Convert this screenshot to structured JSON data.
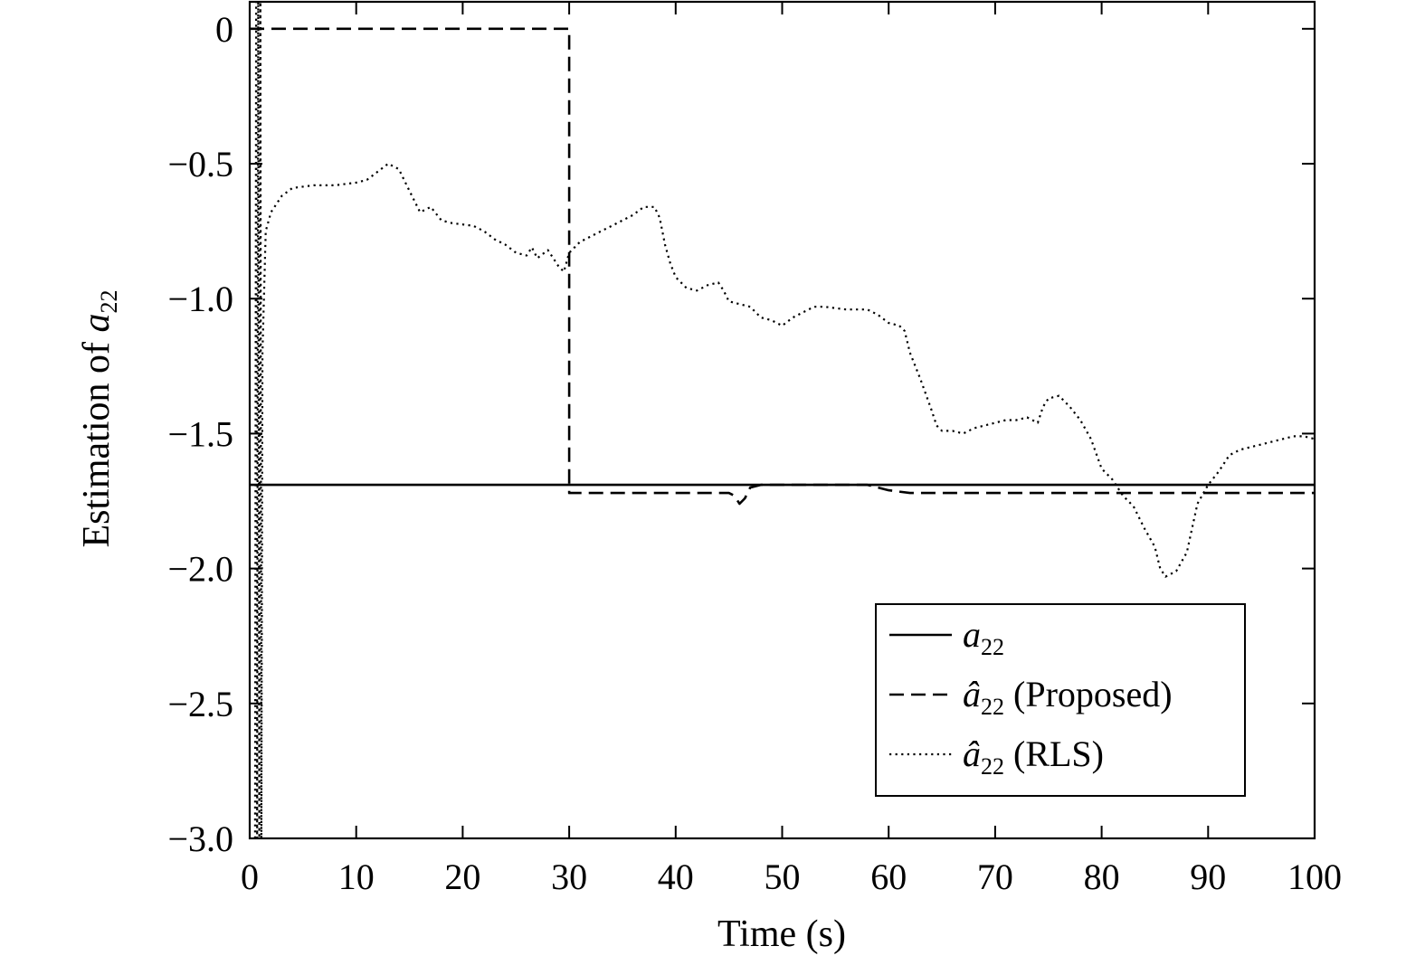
{
  "chart_data": {
    "type": "line",
    "title": "",
    "xlabel": "Time (s)",
    "ylabel": {
      "prefix": "Estimation of ",
      "symbol": "a",
      "subscript": "22"
    },
    "xlim": [
      0,
      100
    ],
    "ylim": [
      -3.0,
      0.1
    ],
    "x_ticks": [
      0,
      10,
      20,
      30,
      40,
      50,
      60,
      70,
      80,
      90,
      100
    ],
    "x_tick_labels": [
      "0",
      "10",
      "20",
      "30",
      "40",
      "50",
      "60",
      "70",
      "80",
      "90",
      "100"
    ],
    "y_ticks": [
      0,
      -0.5,
      -1.0,
      -1.5,
      -2.0,
      -2.5,
      -3.0
    ],
    "y_tick_labels": [
      "0",
      "−0.5",
      "−1.0",
      "−1.5",
      "−2.0",
      "−2.5",
      "−3.0"
    ],
    "grid": false,
    "legend_position": "bottom-right",
    "series": [
      {
        "id": "true",
        "symbol": "a",
        "hat": false,
        "subscript": "22",
        "suffix": "",
        "style": "solid",
        "points": [
          [
            0,
            -1.69
          ],
          [
            100,
            -1.69
          ]
        ]
      },
      {
        "id": "proposed",
        "symbol": "a",
        "hat": true,
        "subscript": "22",
        "suffix": " (Proposed)",
        "style": "dashed",
        "points": [
          [
            0,
            0.0
          ],
          [
            30,
            0.0
          ],
          [
            30,
            -1.72
          ],
          [
            45,
            -1.72
          ],
          [
            45.5,
            -1.73
          ],
          [
            46,
            -1.76
          ],
          [
            46.5,
            -1.74
          ],
          [
            47,
            -1.7
          ],
          [
            48,
            -1.69
          ],
          [
            50,
            -1.69
          ],
          [
            55,
            -1.69
          ],
          [
            58,
            -1.69
          ],
          [
            60,
            -1.71
          ],
          [
            62,
            -1.72
          ],
          [
            100,
            -1.72
          ]
        ]
      },
      {
        "id": "rls",
        "symbol": "a",
        "hat": true,
        "subscript": "22",
        "suffix": " (RLS)",
        "style": "dotted",
        "points": [
          [
            0.5,
            -3.0
          ],
          [
            0.6,
            0.1
          ],
          [
            0.7,
            -3.0
          ],
          [
            0.8,
            0.1
          ],
          [
            0.9,
            -3.0
          ],
          [
            1.0,
            0.1
          ],
          [
            1.1,
            -3.0
          ],
          [
            1.2,
            -1.2
          ],
          [
            1.5,
            -0.75
          ],
          [
            2,
            -0.68
          ],
          [
            3,
            -0.62
          ],
          [
            4,
            -0.59
          ],
          [
            6,
            -0.58
          ],
          [
            8,
            -0.58
          ],
          [
            10,
            -0.57
          ],
          [
            11,
            -0.56
          ],
          [
            12,
            -0.53
          ],
          [
            13,
            -0.5
          ],
          [
            14,
            -0.52
          ],
          [
            15,
            -0.6
          ],
          [
            16,
            -0.68
          ],
          [
            17,
            -0.66
          ],
          [
            18,
            -0.71
          ],
          [
            19,
            -0.72
          ],
          [
            21,
            -0.73
          ],
          [
            22,
            -0.75
          ],
          [
            23,
            -0.78
          ],
          [
            24,
            -0.8
          ],
          [
            25,
            -0.83
          ],
          [
            26,
            -0.84
          ],
          [
            26.5,
            -0.81
          ],
          [
            27,
            -0.85
          ],
          [
            28,
            -0.82
          ],
          [
            29,
            -0.88
          ],
          [
            29.5,
            -0.9
          ],
          [
            30,
            -0.83
          ],
          [
            31,
            -0.79
          ],
          [
            32,
            -0.77
          ],
          [
            33,
            -0.75
          ],
          [
            34,
            -0.73
          ],
          [
            35,
            -0.71
          ],
          [
            36,
            -0.69
          ],
          [
            37,
            -0.66
          ],
          [
            38,
            -0.66
          ],
          [
            38.5,
            -0.7
          ],
          [
            39,
            -0.8
          ],
          [
            39.5,
            -0.87
          ],
          [
            40,
            -0.92
          ],
          [
            41,
            -0.96
          ],
          [
            42,
            -0.97
          ],
          [
            43,
            -0.95
          ],
          [
            44,
            -0.94
          ],
          [
            44.5,
            -0.97
          ],
          [
            45,
            -1.01
          ],
          [
            46,
            -1.02
          ],
          [
            47,
            -1.03
          ],
          [
            48,
            -1.07
          ],
          [
            49,
            -1.08
          ],
          [
            50,
            -1.1
          ],
          [
            51,
            -1.07
          ],
          [
            52,
            -1.05
          ],
          [
            53,
            -1.03
          ],
          [
            54,
            -1.03
          ],
          [
            56,
            -1.04
          ],
          [
            58,
            -1.04
          ],
          [
            59,
            -1.06
          ],
          [
            60,
            -1.09
          ],
          [
            61,
            -1.1
          ],
          [
            61.5,
            -1.12
          ],
          [
            62,
            -1.2
          ],
          [
            63,
            -1.3
          ],
          [
            64,
            -1.41
          ],
          [
            64.5,
            -1.47
          ],
          [
            65,
            -1.49
          ],
          [
            66,
            -1.49
          ],
          [
            67,
            -1.5
          ],
          [
            68,
            -1.48
          ],
          [
            69,
            -1.47
          ],
          [
            70,
            -1.46
          ],
          [
            71,
            -1.45
          ],
          [
            72,
            -1.45
          ],
          [
            73,
            -1.44
          ],
          [
            74,
            -1.46
          ],
          [
            74.5,
            -1.4
          ],
          [
            75,
            -1.37
          ],
          [
            76,
            -1.36
          ],
          [
            77,
            -1.4
          ],
          [
            78,
            -1.45
          ],
          [
            79,
            -1.52
          ],
          [
            80,
            -1.63
          ],
          [
            81,
            -1.67
          ],
          [
            82,
            -1.73
          ],
          [
            83,
            -1.77
          ],
          [
            84,
            -1.85
          ],
          [
            85,
            -1.92
          ],
          [
            85.5,
            -2.0
          ],
          [
            86,
            -2.03
          ],
          [
            87,
            -2.01
          ],
          [
            88,
            -1.94
          ],
          [
            88.5,
            -1.85
          ],
          [
            89,
            -1.76
          ],
          [
            90,
            -1.69
          ],
          [
            91,
            -1.64
          ],
          [
            92,
            -1.58
          ],
          [
            93,
            -1.56
          ],
          [
            94,
            -1.55
          ],
          [
            95,
            -1.54
          ],
          [
            96,
            -1.53
          ],
          [
            97,
            -1.52
          ],
          [
            98,
            -1.51
          ],
          [
            99,
            -1.51
          ],
          [
            100,
            -1.52
          ]
        ]
      }
    ]
  }
}
